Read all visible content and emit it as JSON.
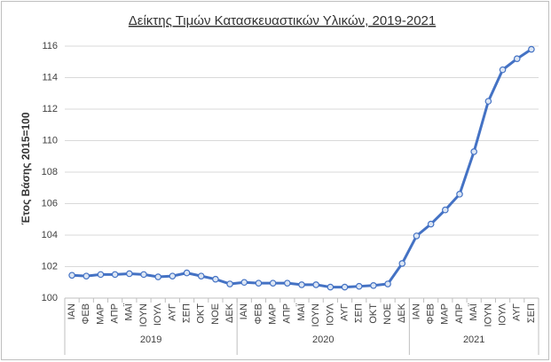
{
  "chart_data": {
    "type": "line",
    "title": "Δείκτης Τιμών Κατασκευαστικών Υλικών, 2019-2021",
    "y_label": "Έτος Βάσης 2015=100",
    "category_groups": [
      {
        "label": "2019",
        "categories": [
          "ΙΑΝ",
          "ΦΕΒ",
          "ΜΑΡ",
          "ΑΠΡ",
          "ΜΑΪ",
          "ΙΟΥΝ",
          "ΙΟΥΛ",
          "ΑΥΓ",
          "ΣΕΠ",
          "ΟΚΤ",
          "ΝΟΕ",
          "ΔΕΚ"
        ]
      },
      {
        "label": "2020",
        "categories": [
          "ΙΑΝ",
          "ΦΕΒ",
          "ΜΑΡ",
          "ΑΠΡ",
          "ΜΑΪ",
          "ΙΟΥΝ",
          "ΙΟΥΛ",
          "ΑΥΓ",
          "ΣΕΠ",
          "ΟΚΤ",
          "ΝΟΕ",
          "ΔΕΚ"
        ]
      },
      {
        "label": "2021",
        "categories": [
          "ΙΑΝ",
          "ΦΕΒ",
          "ΜΑΡ",
          "ΑΠΡ",
          "ΜΑΪ",
          "ΙΟΥΝ",
          "ΙΟΥΛ",
          "ΑΥΓ",
          "ΣΕΠ"
        ]
      }
    ],
    "values": [
      101.45,
      101.4,
      101.5,
      101.5,
      101.55,
      101.5,
      101.35,
      101.4,
      101.6,
      101.4,
      101.2,
      100.9,
      101.0,
      100.95,
      100.95,
      100.95,
      100.85,
      100.85,
      100.7,
      100.7,
      100.75,
      100.8,
      100.9,
      102.2,
      103.95,
      104.7,
      105.6,
      106.6,
      109.3,
      112.5,
      114.5,
      115.2,
      115.8
    ],
    "color": "#4472c4",
    "ylim": [
      100,
      116
    ],
    "yticks": [
      100,
      102,
      104,
      106,
      108,
      110,
      112,
      114,
      116
    ],
    "grid": true
  }
}
